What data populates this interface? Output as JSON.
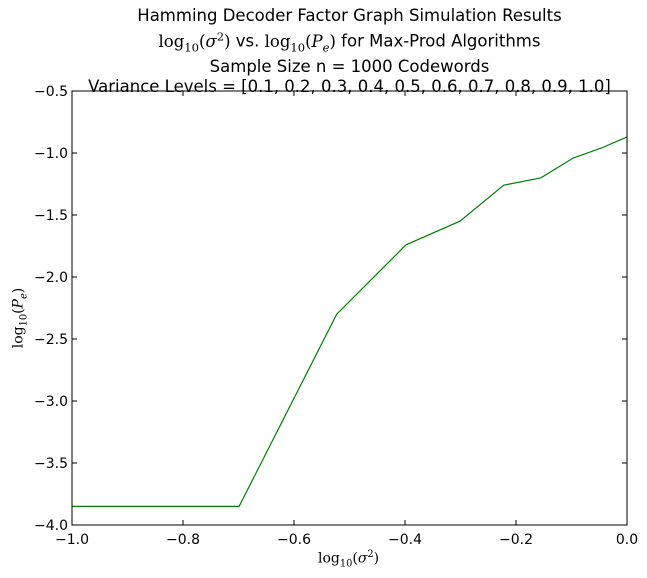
{
  "chart_data": {
    "type": "line",
    "title_lines": [
      "Hamming Decoder Factor Graph Simulation Results",
      "vs.",
      "for Max-Prod Algorithms",
      "Sample Size n = 1000 Codewords",
      "Variance Levels = [0.1, 0.2, 0.3, 0.4, 0.5, 0.6, 0.7, 0.8, 0.9, 1.0]"
    ],
    "math": {
      "log": "log",
      "base": "10",
      "sigma": "σ",
      "sq": "2",
      "pe_p": "P",
      "pe_e": "e",
      "lp": "(",
      "rp": ")"
    },
    "xlim": [
      -1.0,
      0.0
    ],
    "ylim": [
      -4.0,
      -0.5
    ],
    "xticks": [
      -1.0,
      -0.8,
      -0.6,
      -0.4,
      -0.2,
      0.0
    ],
    "yticks": [
      -0.5,
      -1.0,
      -1.5,
      -2.0,
      -2.5,
      -3.0,
      -3.5,
      -4.0
    ],
    "xtick_labels": [
      "−1.0",
      "−0.8",
      "−0.6",
      "−0.4",
      "−0.2",
      "0.0"
    ],
    "ytick_labels": [
      "−0.5",
      "−1.0",
      "−1.5",
      "−2.0",
      "−2.5",
      "−3.0",
      "−3.5",
      "−4.0"
    ],
    "series": [
      {
        "name": "Max-Prod",
        "color": "#008000",
        "x": [
          -1.0,
          -0.699,
          -0.523,
          -0.398,
          -0.301,
          -0.222,
          -0.155,
          -0.097,
          -0.046,
          0.0
        ],
        "y": [
          -3.85,
          -3.85,
          -2.3,
          -1.74,
          -1.55,
          -1.26,
          -1.2,
          -1.04,
          -0.96,
          -0.87
        ]
      }
    ]
  }
}
